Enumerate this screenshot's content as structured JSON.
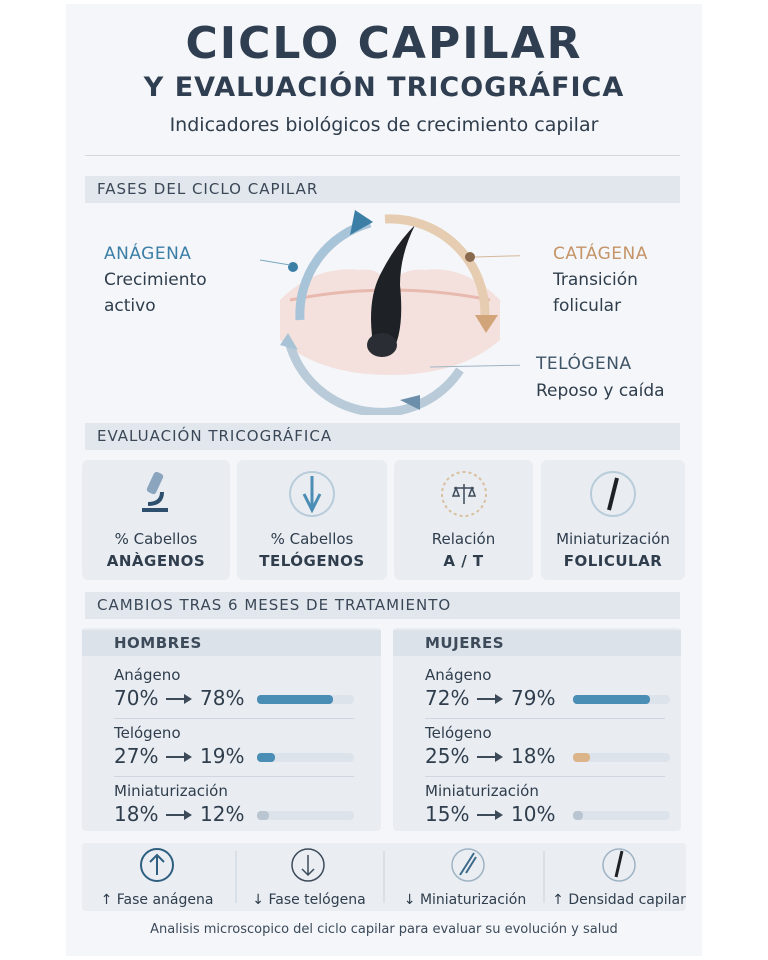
{
  "header": {
    "title": "CICLO CAPILAR",
    "title2": "Y EVALUACIÓN TRICOGRÁFICA",
    "subtitle": "Indicadores biológicos de crecimiento capilar"
  },
  "phases": {
    "heading": "FASES DEL CICLO CAPILAR",
    "items": [
      {
        "name": "ANÁGENA",
        "line1": "Crecimiento",
        "line2": "activo"
      },
      {
        "name": "CATÁGENA",
        "line1": "Transición",
        "line2": "folicular"
      },
      {
        "name": "TELÓGENA",
        "line1": "Reposo y caída"
      }
    ]
  },
  "evaluation": {
    "heading": "EVALUACIÓN TRICOGRÁFICA",
    "cards": [
      {
        "line1": "% Cabellos",
        "line2": "ANÀGENOS"
      },
      {
        "line1": "% Cabellos",
        "line2": "TELÓGENOS"
      },
      {
        "line1": "Relación",
        "line2": "A / T"
      },
      {
        "line1": "Miniaturización",
        "line2": "FOLICULAR"
      }
    ]
  },
  "changes": {
    "heading": "CAMBIOS TRAS 6 MESES DE TRATAMIENTO",
    "panels": [
      {
        "name": "HOMBRES",
        "metrics": [
          {
            "name": "Anágeno",
            "before": {
              "value": 70,
              "label": "70%"
            },
            "after": {
              "value": 78,
              "label": "78%"
            },
            "color": "#4a8db5"
          },
          {
            "name": "Telógeno",
            "before": {
              "value": 27,
              "label": "27%"
            },
            "after": {
              "value": 19,
              "label": "19%"
            },
            "color": "#4a8db5"
          },
          {
            "name": "Miniaturización",
            "before": {
              "value": 18,
              "label": "18%"
            },
            "after": {
              "value": 12,
              "label": "12%"
            },
            "color": "#b9c5d1"
          }
        ]
      },
      {
        "name": "MUJERES",
        "metrics": [
          {
            "name": "Anágeno",
            "before": {
              "value": 72,
              "label": "72%"
            },
            "after": {
              "value": 79,
              "label": "79%"
            },
            "color": "#4a8db5"
          },
          {
            "name": "Telógeno",
            "before": {
              "value": 25,
              "label": "25%"
            },
            "after": {
              "value": 18,
              "label": "18%"
            },
            "color": "#dcb48a"
          },
          {
            "name": "Miniaturización",
            "before": {
              "value": 15,
              "label": "15%"
            },
            "after": {
              "value": 10,
              "label": "10%"
            },
            "color": "#b9c5d1"
          }
        ]
      }
    ]
  },
  "summary": {
    "items": [
      "↑ Fase anágena",
      "↓ Fase telógena",
      "↓ Miniaturización",
      "↑ Densidad capilar"
    ]
  },
  "footer": "Analisis microscopico del ciclo capilar para evaluar su evolución y salud"
}
